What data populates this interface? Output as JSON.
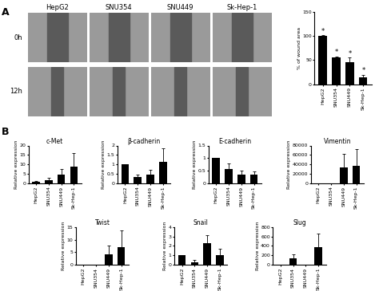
{
  "panel_labels": [
    "A",
    "B"
  ],
  "images": {
    "columns": [
      "HepG2",
      "SNU354",
      "SNU449",
      "Sk-Hep-1"
    ],
    "rows": [
      "0h",
      "12h"
    ]
  },
  "chart_data": [
    {
      "type": "bar",
      "ylabel": "% of wound area",
      "categories": [
        "HepG2",
        "SNU354",
        "SNU449",
        "Sk-Hep-1"
      ],
      "values": [
        100,
        55,
        45,
        15
      ],
      "errors": [
        1,
        2,
        10,
        5
      ],
      "annotations": [
        "*",
        "*",
        "*",
        "*"
      ],
      "ylim": [
        0,
        150
      ],
      "yticks": [
        0,
        50,
        100,
        150
      ],
      "color": "#000000"
    },
    {
      "type": "bar",
      "title": "c-Met",
      "ylabel": "Relative expression",
      "categories": [
        "HepG2",
        "SNU354",
        "SNU449",
        "Sk-Hep-1"
      ],
      "values": [
        1,
        1.8,
        4.5,
        9
      ],
      "errors": [
        0.3,
        1,
        3,
        7
      ],
      "ylim": [
        0,
        20
      ],
      "yticks": [
        0,
        5,
        10,
        15,
        20
      ],
      "color": "#000000"
    },
    {
      "type": "bar",
      "title": "β-cadherin",
      "ylabel": "Relative expression",
      "categories": [
        "HepG2",
        "SNU354",
        "SNU449",
        "Sk-Hep-1"
      ],
      "values": [
        1,
        0.35,
        0.45,
        1.15
      ],
      "errors": [
        0,
        0.12,
        0.25,
        0.7
      ],
      "ylim": [
        0,
        2
      ],
      "yticks": [
        0,
        0.5,
        1,
        1.5,
        2
      ],
      "color": "#000000"
    },
    {
      "type": "bar",
      "title": "E-cadherin",
      "ylabel": "Relative expression",
      "categories": [
        "HepG2",
        "SNU354",
        "SNU449",
        "Sk-Hep-1"
      ],
      "values": [
        1,
        0.58,
        0.35,
        0.35
      ],
      "errors": [
        0,
        0.2,
        0.15,
        0.12
      ],
      "ylim": [
        0,
        1.5
      ],
      "yticks": [
        0,
        0.5,
        1,
        1.5
      ],
      "color": "#000000"
    },
    {
      "type": "bar",
      "title": "Vimentin",
      "ylabel": "Relative expression",
      "categories": [
        "HepG2",
        "SNU354",
        "SNU449",
        "Sk-Hep-1"
      ],
      "values": [
        1,
        100,
        33000,
        37000
      ],
      "errors": [
        0,
        0,
        30000,
        35000
      ],
      "ylim": [
        0,
        80000
      ],
      "yticks": [
        0,
        20000,
        40000,
        60000,
        80000
      ],
      "color": "#000000"
    },
    {
      "type": "bar",
      "title": "Twist",
      "ylabel": "Relative expression",
      "categories": [
        "HepG2",
        "SNU354",
        "SNU449",
        "Sk-Hep-1"
      ],
      "values": [
        0,
        0,
        4,
        7
      ],
      "errors": [
        0,
        0,
        3.5,
        6.5
      ],
      "ylim": [
        0,
        15
      ],
      "yticks": [
        0,
        5,
        10,
        15
      ],
      "color": "#000000"
    },
    {
      "type": "bar",
      "title": "Snail",
      "ylabel": "Relative expression",
      "categories": [
        "HepG2",
        "SNU354",
        "SNU449",
        "Sk-Hep-1"
      ],
      "values": [
        1,
        0.3,
        2.3,
        1
      ],
      "errors": [
        0,
        0.2,
        0.8,
        0.7
      ],
      "ylim": [
        0,
        4
      ],
      "yticks": [
        0,
        1,
        2,
        3,
        4
      ],
      "color": "#000000"
    },
    {
      "type": "bar",
      "title": "Slug",
      "ylabel": "Relative expression",
      "categories": [
        "HepG2",
        "SNU354",
        "SNU449",
        "Sk-Hep-1"
      ],
      "values": [
        1,
        130,
        5,
        380
      ],
      "errors": [
        0,
        100,
        0,
        280
      ],
      "ylim": [
        0,
        800
      ],
      "yticks": [
        0,
        200,
        400,
        600,
        800
      ],
      "color": "#000000"
    }
  ]
}
